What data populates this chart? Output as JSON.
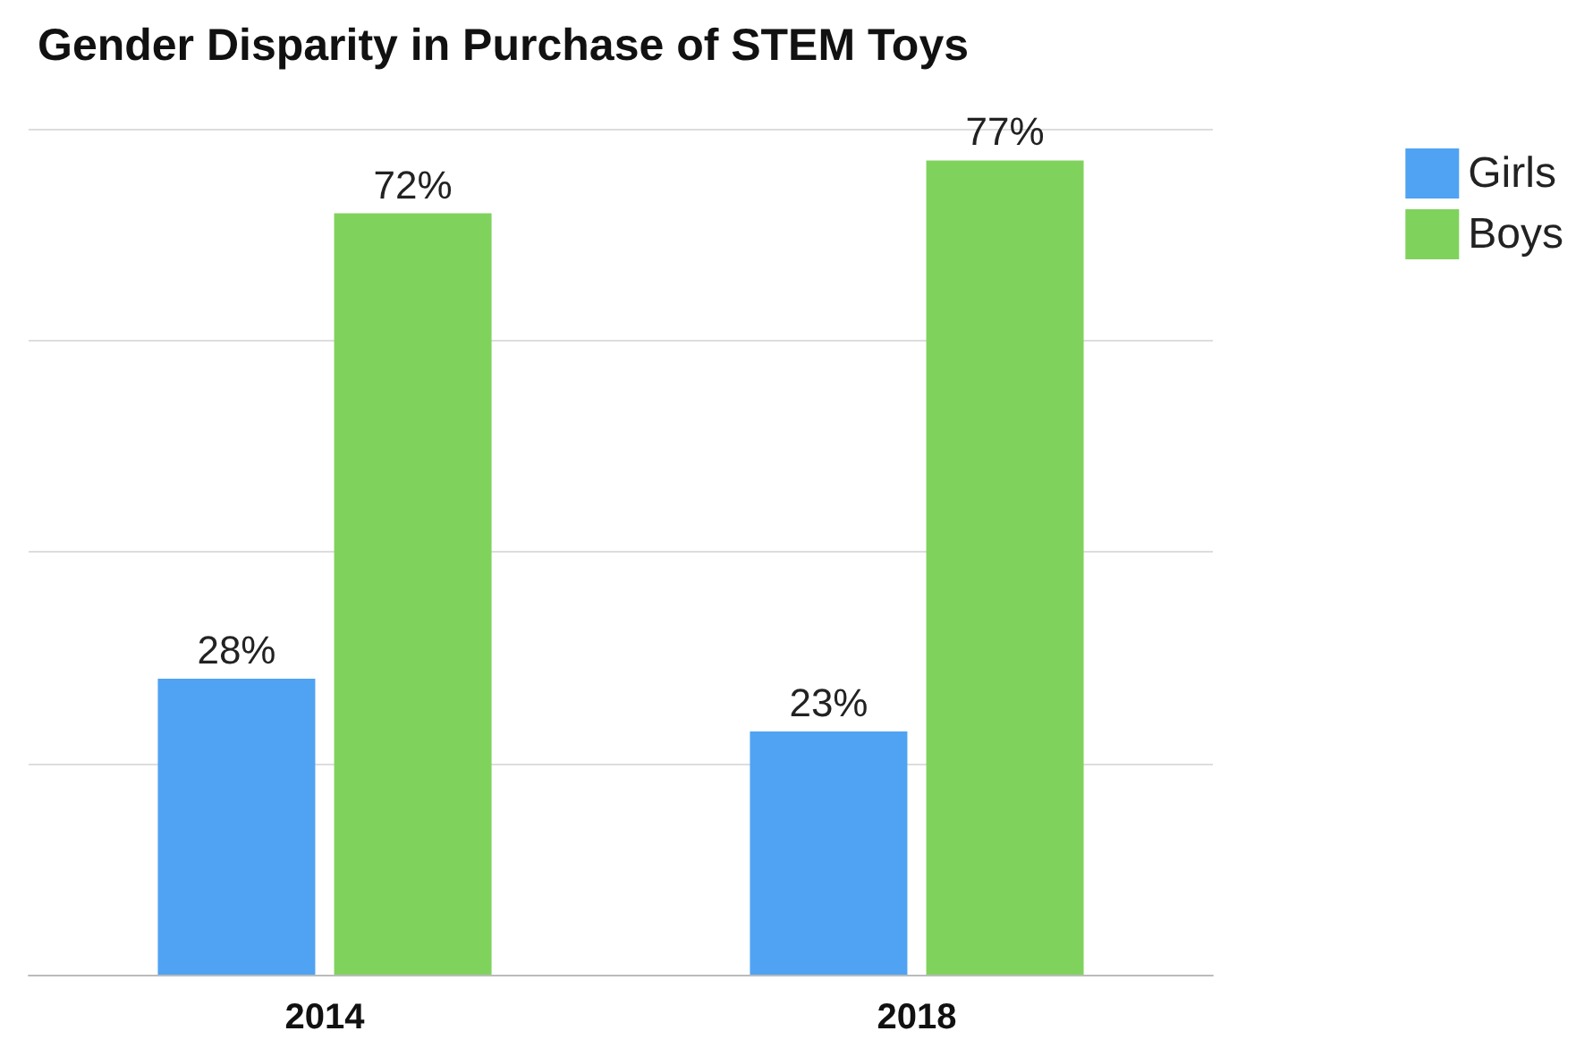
{
  "chart_data": {
    "type": "bar",
    "title": "Gender Disparity in Purchase of STEM Toys",
    "categories": [
      "2014",
      "2018"
    ],
    "series": [
      {
        "name": "Girls",
        "color": "#4fa3f2",
        "values": [
          28,
          23
        ],
        "value_labels": [
          "28%",
          "23%"
        ]
      },
      {
        "name": "Boys",
        "color": "#7fd35c",
        "values": [
          72,
          77
        ],
        "value_labels": [
          "72%",
          "77%"
        ]
      }
    ],
    "ylim": [
      0,
      80
    ],
    "yticks": [
      {
        "value": 0,
        "label": null
      },
      {
        "value": 20,
        "label": null
      },
      {
        "value": 40,
        "label": null
      },
      {
        "value": 60,
        "label": null
      },
      {
        "value": 80,
        "label": null
      }
    ],
    "tick_labels": "x",
    "grid": "y",
    "legend": "top right"
  }
}
